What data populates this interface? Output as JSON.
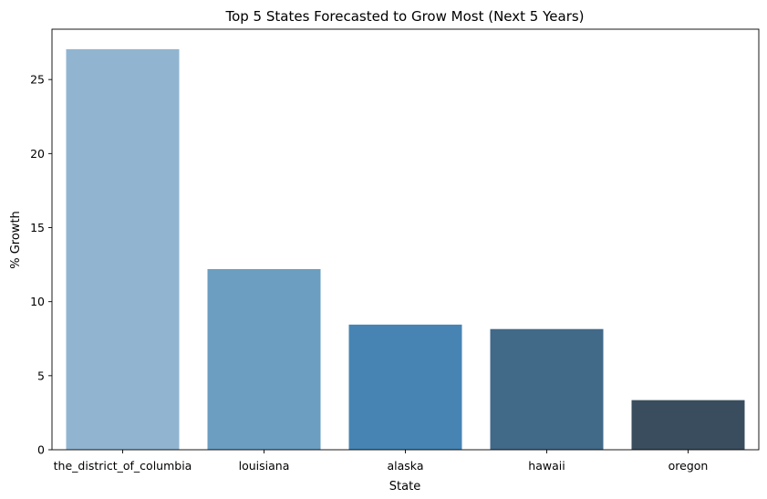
{
  "chart_data": {
    "type": "bar",
    "title": "Top 5 States Forecasted to Grow Most (Next 5 Years)",
    "xlabel": "State",
    "ylabel": "% Growth",
    "categories": [
      "the_district_of_columbia",
      "louisiana",
      "alaska",
      "hawaii",
      "oregon"
    ],
    "values": [
      27.05,
      12.2,
      8.45,
      8.15,
      3.35
    ],
    "colors": [
      "#91b5d0",
      "#6b9ec1",
      "#4784b3",
      "#416988",
      "#3a4d5e"
    ],
    "ylim": [
      0,
      28.4
    ],
    "yticks": [
      0,
      5,
      10,
      15,
      20,
      25
    ],
    "grid": false,
    "legend": false
  }
}
